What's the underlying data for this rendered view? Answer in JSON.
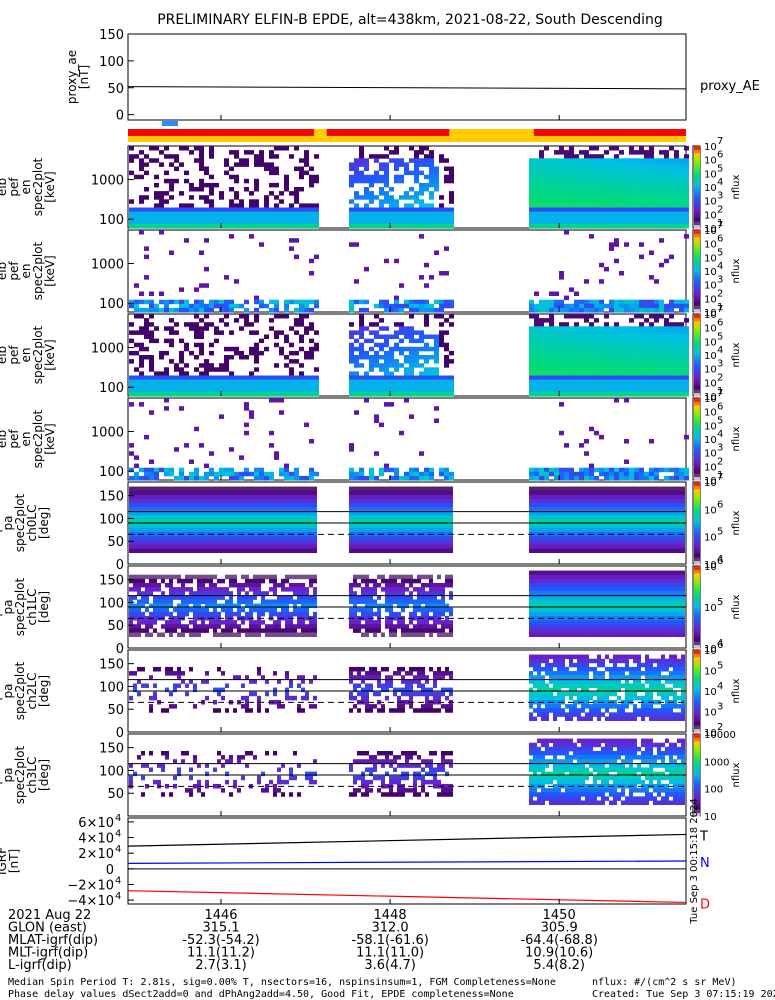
{
  "title": "PRELIMINARY ELFIN-B EPDE, alt=438km, 2021-08-22, South Descending",
  "timestamp_vertical": "Tue Sep  3 00:15:18 2024",
  "panels": [
    {
      "id": "proxy_ae",
      "ylabel": [
        "proxy_ae",
        "[nT]"
      ],
      "yticks": [
        "150",
        "100",
        "50",
        "0"
      ],
      "legend": "proxy_AE"
    },
    {
      "id": "en1",
      "ylabel": [
        "elb",
        "pef",
        "en",
        "spec2plot",
        "[keV]"
      ],
      "yticks": [
        "1000",
        "100"
      ],
      "cbar_label": "nflux",
      "cbar_ticks": [
        "10",
        "10",
        "10",
        "10",
        "10",
        "10",
        "10"
      ],
      "cbar_exps": [
        "1",
        "2",
        "3",
        "4",
        "5",
        "6",
        "7"
      ]
    },
    {
      "id": "en2",
      "ylabel": [
        "elb",
        "pef",
        "en",
        "spec2plot",
        "[keV]"
      ],
      "yticks": [
        "1000",
        "100"
      ],
      "cbar_label": "nflux",
      "cbar_ticks": [
        "10",
        "10",
        "10",
        "10",
        "10",
        "10",
        "10"
      ],
      "cbar_exps": [
        "1",
        "2",
        "3",
        "4",
        "5",
        "6",
        "7"
      ]
    },
    {
      "id": "en3",
      "ylabel": [
        "elb",
        "pef",
        "en",
        "spec2plot",
        "[keV]"
      ],
      "yticks": [
        "1000",
        "100"
      ],
      "cbar_label": "nflux",
      "cbar_ticks": [
        "10",
        "10",
        "10",
        "10",
        "10",
        "10",
        "10"
      ],
      "cbar_exps": [
        "1",
        "2",
        "3",
        "4",
        "5",
        "6",
        "7"
      ]
    },
    {
      "id": "en4",
      "ylabel": [
        "elb",
        "pef",
        "en",
        "spec2plot",
        "[keV]"
      ],
      "yticks": [
        "1000",
        "100"
      ],
      "cbar_label": "nflux",
      "cbar_ticks": [
        "10",
        "10",
        "10",
        "10",
        "10",
        "10",
        "10"
      ],
      "cbar_exps": [
        "1",
        "2",
        "3",
        "4",
        "5",
        "6",
        "7"
      ]
    },
    {
      "id": "pa0",
      "ylabel": [
        "elb",
        "pef",
        "pa",
        "spec2plot",
        "ch0LC",
        "[deg]"
      ],
      "yticks": [
        "150",
        "100",
        "50",
        "0"
      ],
      "cbar_label": "nflux",
      "cbar_ticks": [
        "10",
        "10",
        "10",
        "10"
      ],
      "cbar_exps": [
        "4",
        "5",
        "6",
        "7"
      ]
    },
    {
      "id": "pa1",
      "ylabel": [
        "elb",
        "pef",
        "pa",
        "spec2plot",
        "ch1LC",
        "[deg]"
      ],
      "yticks": [
        "150",
        "100",
        "50",
        "0"
      ],
      "cbar_label": "nflux",
      "cbar_ticks": [
        "10",
        "10",
        "10"
      ],
      "cbar_exps": [
        "4",
        "5",
        "6"
      ]
    },
    {
      "id": "pa2",
      "ylabel": [
        "elb",
        "pef",
        "pa",
        "spec2plot",
        "ch2LC",
        "[deg]"
      ],
      "yticks": [
        "150",
        "100",
        "50",
        "0"
      ],
      "cbar_label": "nflux",
      "cbar_ticks": [
        "10",
        "10",
        "10",
        "10",
        "10"
      ],
      "cbar_exps": [
        "2",
        "3",
        "4",
        "5",
        "6"
      ]
    },
    {
      "id": "pa3",
      "ylabel": [
        "elb",
        "pef",
        "pa",
        "spec2plot",
        "ch3LC",
        "[deg]"
      ],
      "yticks": [
        "150",
        "100",
        "50"
      ],
      "cbar_label": "nflux",
      "cbar_ticks": [
        "10000",
        "1000",
        "100",
        "10"
      ],
      "cbar_exps": []
    },
    {
      "id": "igrf",
      "ylabel": [
        "IGRF",
        "[nT]"
      ],
      "yticks": [
        "6×10",
        "4×10",
        "2×10",
        "0",
        "−2×10",
        "−4×10"
      ],
      "ytick_exps": [
        "4",
        "4",
        "4",
        "",
        "4",
        "4"
      ],
      "legend": [
        "T",
        "N",
        "D"
      ]
    }
  ],
  "xaxis": {
    "rows": [
      {
        "label": "2021 Aug 22",
        "values": [
          "1446",
          "1448",
          "1450"
        ]
      },
      {
        "label": "GLON (east)",
        "values": [
          "315.1",
          "312.0",
          "305.9"
        ]
      },
      {
        "label": "MLAT-igrf(dip)",
        "values": [
          "-52.3(-54.2)",
          "-58.1(-61.6)",
          "-64.4(-68.8)"
        ]
      },
      {
        "label": "MLT-igrf(dip)",
        "values": [
          "11.1(11.2)",
          "11.1(11.0)",
          "10.9(10.6)"
        ]
      },
      {
        "label": "L-igrf(dip)",
        "values": [
          "2.7(3.1)",
          "3.6(4.7)",
          "5.4(8.2)"
        ]
      }
    ]
  },
  "footer": {
    "line1": "Median Spin Period T: 2.81s, sig=0.00% T, nsectors=16, nspinsinsum=1, FGM Completeness=None",
    "line2": "Phase delay values dSect2add=0 and dPhAng2add=4.50, Good Fit, EPDE completeness=None",
    "units": "nflux: #/(cm^2 s sr MeV)",
    "created": "Created: Tue Sep  3 07:15:19 2024"
  },
  "chart_data": {
    "type": "heatmap",
    "title": "PRELIMINARY ELFIN-B EPDE, alt=438km, 2021-08-22, South Descending",
    "x_time_minutes_after_1400": [
      44.9,
      51.5
    ],
    "proxy_ae": {
      "type": "line",
      "name": "proxy_AE",
      "x": [
        44.9,
        51.5
      ],
      "values": [
        52,
        48
      ],
      "ylim": [
        -10,
        150
      ]
    },
    "data_gaps_minutes": [
      [
        47.1,
        47.5
      ],
      [
        48.7,
        49.6
      ]
    ],
    "energy_spectrograms": {
      "ylim_keV": [
        60,
        7000
      ],
      "log": true,
      "zlim": [
        10,
        10000000
      ],
      "zlabel": "nflux"
    },
    "pitch_angle_spectrograms": {
      "ylim_deg": [
        0,
        180
      ],
      "reference_lines_deg": [
        65,
        90,
        115
      ]
    },
    "igrf": {
      "type": "line",
      "ylim": [
        -45000,
        65000
      ],
      "series": [
        {
          "name": "T",
          "color": "#000000",
          "values": [
            29000,
            44000
          ]
        },
        {
          "name": "N",
          "color": "#0000ff",
          "values": [
            7000,
            10000
          ]
        },
        {
          "name": "D",
          "color": "#ff0000",
          "values": [
            -28000,
            -43000
          ]
        }
      ]
    },
    "bar_colors": {
      "red": "#ff0000",
      "yellow": "#ffcc00",
      "blue": "#1f8fff"
    }
  }
}
